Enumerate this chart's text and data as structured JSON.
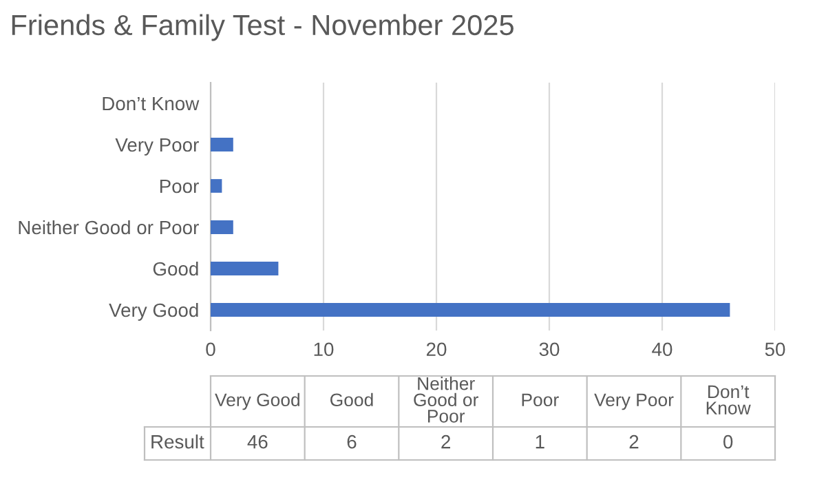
{
  "chart_data": {
    "type": "bar",
    "orientation": "horizontal",
    "title": "Friends & Family Test - November 2025",
    "categories": [
      "Don’t Know",
      "Very Poor",
      "Poor",
      "Neither Good or Poor",
      "Good",
      "Very Good"
    ],
    "series": [
      {
        "name": "Result",
        "color": "#4472c4",
        "values": [
          0,
          2,
          1,
          2,
          6,
          46
        ]
      }
    ],
    "annotations": [
      "46",
      "6",
      "2",
      "1",
      "2",
      "0"
    ],
    "xlim": [
      0,
      50
    ],
    "xticks": [
      0,
      10,
      20,
      30,
      40,
      50
    ],
    "grid": "x"
  }
}
